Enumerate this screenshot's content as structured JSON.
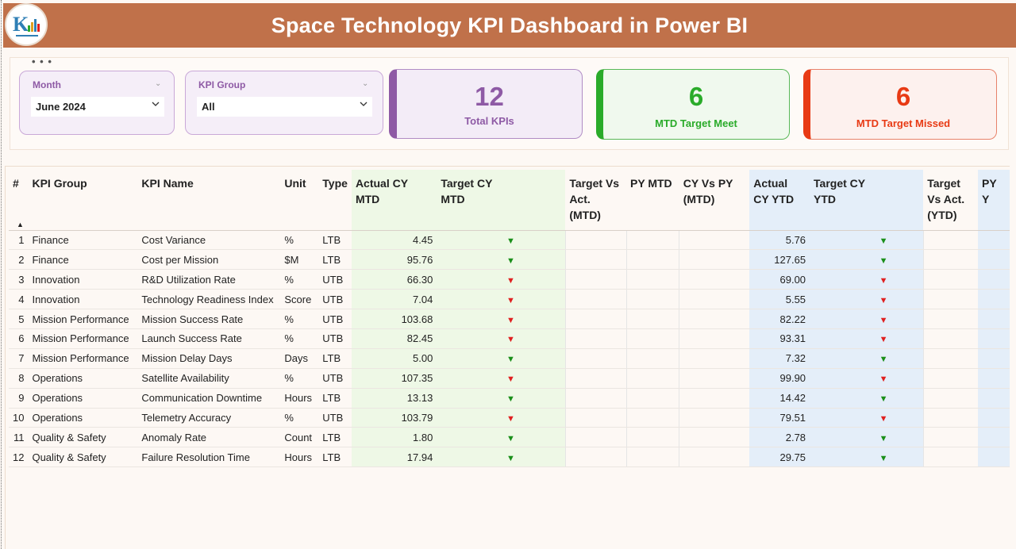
{
  "header": {
    "title": "Space Technology KPI Dashboard in Power BI"
  },
  "filters": {
    "month": {
      "label": "Month",
      "value": "June 2024"
    },
    "kpi_group": {
      "label": "KPI Group",
      "value": "All"
    }
  },
  "cards": {
    "total": {
      "value": "12",
      "caption": "Total KPIs",
      "color": "#8e5aa5"
    },
    "meet": {
      "value": "6",
      "caption": "MTD Target Meet",
      "color": "#2aab2a"
    },
    "missed": {
      "value": "6",
      "caption": "MTD Target Missed",
      "color": "#e83a14"
    }
  },
  "table": {
    "columns": [
      "#",
      "KPI Group",
      "KPI Name",
      "Unit",
      "Type",
      "Actual CY MTD",
      "Target CY MTD",
      "",
      "Target Vs Act. (MTD)",
      "PY MTD",
      "CY Vs PY (MTD)",
      "Actual CY YTD",
      "Target CY YTD",
      "",
      "Target Vs Act. (YTD)",
      "PY Y"
    ],
    "rows": [
      {
        "n": "1",
        "group": "Finance",
        "name": "Cost Variance",
        "unit": "%",
        "type": "LTB",
        "act_mtd": "4.45",
        "mtd_arrow": "up",
        "act_ytd": "5.76",
        "ytd_arrow": "up"
      },
      {
        "n": "2",
        "group": "Finance",
        "name": "Cost per Mission",
        "unit": "$M",
        "type": "LTB",
        "act_mtd": "95.76",
        "mtd_arrow": "up",
        "act_ytd": "127.65",
        "ytd_arrow": "up"
      },
      {
        "n": "3",
        "group": "Innovation",
        "name": "R&D Utilization Rate",
        "unit": "%",
        "type": "UTB",
        "act_mtd": "66.30",
        "mtd_arrow": "down",
        "act_ytd": "69.00",
        "ytd_arrow": "down"
      },
      {
        "n": "4",
        "group": "Innovation",
        "name": "Technology Readiness Index",
        "unit": "Score",
        "type": "UTB",
        "act_mtd": "7.04",
        "mtd_arrow": "down",
        "act_ytd": "5.55",
        "ytd_arrow": "down"
      },
      {
        "n": "5",
        "group": "Mission Performance",
        "name": "Mission Success Rate",
        "unit": "%",
        "type": "UTB",
        "act_mtd": "103.68",
        "mtd_arrow": "down",
        "act_ytd": "82.22",
        "ytd_arrow": "down"
      },
      {
        "n": "6",
        "group": "Mission Performance",
        "name": "Launch Success Rate",
        "unit": "%",
        "type": "UTB",
        "act_mtd": "82.45",
        "mtd_arrow": "down",
        "act_ytd": "93.31",
        "ytd_arrow": "down"
      },
      {
        "n": "7",
        "group": "Mission Performance",
        "name": "Mission Delay Days",
        "unit": "Days",
        "type": "LTB",
        "act_mtd": "5.00",
        "mtd_arrow": "up",
        "act_ytd": "7.32",
        "ytd_arrow": "up"
      },
      {
        "n": "8",
        "group": "Operations",
        "name": "Satellite Availability",
        "unit": "%",
        "type": "UTB",
        "act_mtd": "107.35",
        "mtd_arrow": "down",
        "act_ytd": "99.90",
        "ytd_arrow": "down"
      },
      {
        "n": "9",
        "group": "Operations",
        "name": "Communication Downtime",
        "unit": "Hours",
        "type": "LTB",
        "act_mtd": "13.13",
        "mtd_arrow": "up",
        "act_ytd": "14.42",
        "ytd_arrow": "up"
      },
      {
        "n": "10",
        "group": "Operations",
        "name": "Telemetry Accuracy",
        "unit": "%",
        "type": "UTB",
        "act_mtd": "103.79",
        "mtd_arrow": "down",
        "act_ytd": "79.51",
        "ytd_arrow": "down"
      },
      {
        "n": "11",
        "group": "Quality & Safety",
        "name": "Anomaly Rate",
        "unit": "Count",
        "type": "LTB",
        "act_mtd": "1.80",
        "mtd_arrow": "up",
        "act_ytd": "2.78",
        "ytd_arrow": "up"
      },
      {
        "n": "12",
        "group": "Quality & Safety",
        "name": "Failure Resolution Time",
        "unit": "Hours",
        "type": "LTB",
        "act_mtd": "17.94",
        "mtd_arrow": "up",
        "act_ytd": "29.75",
        "ytd_arrow": "up"
      }
    ]
  },
  "colors": {
    "header_bg": "#c0714a",
    "mtd_bg": "#eef8e6",
    "ytd_bg": "#e4eef9",
    "up": "#1a8f1a",
    "down": "#e02020"
  }
}
